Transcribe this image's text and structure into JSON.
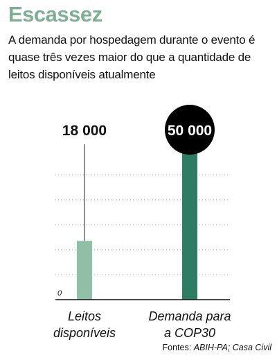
{
  "header": {
    "title": "Escassez",
    "subtitle": "A demanda por hospedagem durante o evento é quase três vezes maior do que a quantidade de leitos disponíveis atualmente"
  },
  "source": {
    "label": "Fontes:",
    "names": "ABIH-PA; Casa Civil"
  },
  "colors": {
    "title": "#7fae94",
    "bar_leitos": "#8fbfa4",
    "bar_demanda": "#2e7d62",
    "gridline": "#999999",
    "value_circle": "#000000"
  },
  "chart_data": {
    "type": "bar",
    "categories": [
      [
        "Leitos",
        "disponíveis"
      ],
      [
        "Demanda para",
        "a COP30"
      ]
    ],
    "values": [
      18000,
      50000
    ],
    "value_labels": [
      "18 000",
      "50 000"
    ],
    "highlighted_value_index": 1,
    "ytick_labels": [
      "0"
    ],
    "ylim": [
      0,
      62000
    ],
    "grid": true,
    "title": "",
    "xlabel": "",
    "ylabel": ""
  }
}
